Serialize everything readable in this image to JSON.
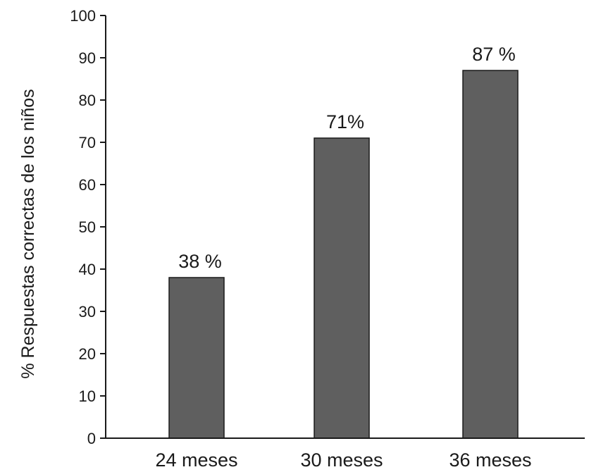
{
  "chart_data": {
    "type": "bar",
    "categories": [
      "24 meses",
      "30 meses",
      "36 meses"
    ],
    "values": [
      38,
      71,
      87
    ],
    "data_labels": [
      "38 %",
      "71%",
      "87 %"
    ],
    "title": "",
    "xlabel": "",
    "ylabel": "% Respuestas correctas de los niños",
    "ylim": [
      0,
      100
    ],
    "yticks": [
      0,
      10,
      20,
      30,
      40,
      50,
      60,
      70,
      80,
      90,
      100
    ],
    "grid": false,
    "legend": "none",
    "colors": {
      "bar_fill": "#5f5f5f",
      "bar_stroke": "#1a1a1a",
      "axis": "#1a1a1a"
    }
  }
}
